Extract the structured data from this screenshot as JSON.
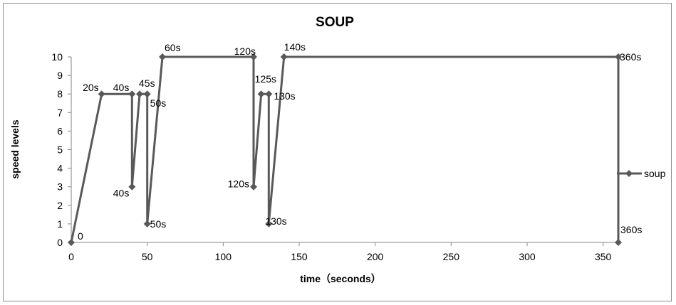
{
  "chart_data": {
    "type": "line",
    "title": "SOUP",
    "xlabel": "time（seconds）",
    "ylabel": "speed levels",
    "xlim": [
      0,
      360
    ],
    "ylim": [
      0,
      10
    ],
    "x_ticks": [
      0,
      50,
      100,
      150,
      200,
      250,
      300,
      350
    ],
    "y_ticks": [
      0,
      1,
      2,
      3,
      4,
      5,
      6,
      7,
      8,
      9,
      10
    ],
    "grid": false,
    "legend": "right",
    "series": [
      {
        "name": "soup",
        "color": "#595959",
        "marker": "diamond",
        "points": [
          {
            "x": 0,
            "y": 0,
            "label": "0"
          },
          {
            "x": 20,
            "y": 8,
            "label": "20s"
          },
          {
            "x": 40,
            "y": 8,
            "label": "40s"
          },
          {
            "x": 40,
            "y": 3,
            "label": "40s"
          },
          {
            "x": 45,
            "y": 8,
            "label": "45s"
          },
          {
            "x": 50,
            "y": 8,
            "label": "50s"
          },
          {
            "x": 50,
            "y": 1,
            "label": "50s"
          },
          {
            "x": 60,
            "y": 10,
            "label": "60s"
          },
          {
            "x": 120,
            "y": 10,
            "label": "120s"
          },
          {
            "x": 120,
            "y": 3,
            "label": "120s"
          },
          {
            "x": 125,
            "y": 8,
            "label": "125s"
          },
          {
            "x": 130,
            "y": 8,
            "label": "130s"
          },
          {
            "x": 130,
            "y": 1,
            "label": "130s"
          },
          {
            "x": 140,
            "y": 10,
            "label": "140s"
          },
          {
            "x": 360,
            "y": 10,
            "label": "360s"
          },
          {
            "x": 360,
            "y": 0,
            "label": "360s"
          }
        ]
      }
    ]
  }
}
